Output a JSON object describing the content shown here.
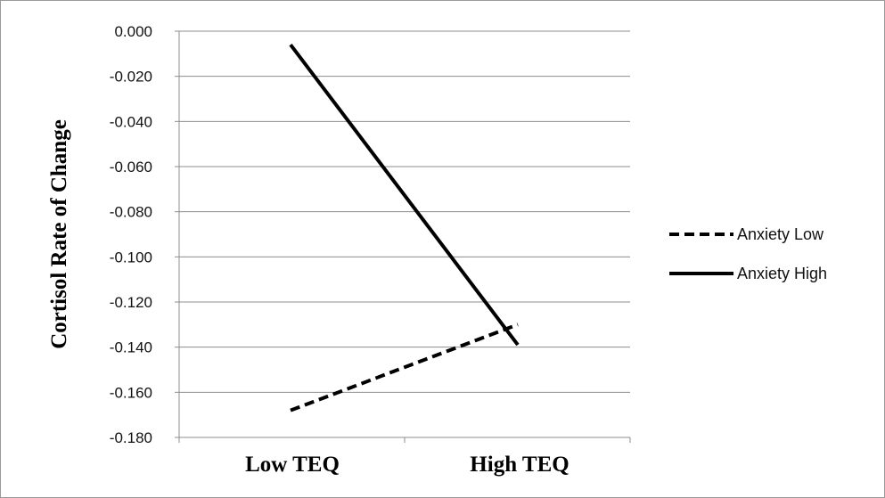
{
  "chart_data": {
    "type": "line",
    "ylabel": "Cortisol Rate of Change",
    "xlabel": "",
    "categories": [
      "Low TEQ",
      "High TEQ"
    ],
    "ylim": [
      -0.18,
      0.0
    ],
    "yticks": [
      "0.000",
      "-0.020",
      "-0.040",
      "-0.060",
      "-0.080",
      "-0.100",
      "-0.120",
      "-0.140",
      "-0.160",
      "-0.180"
    ],
    "ytick_values": [
      0.0,
      -0.02,
      -0.04,
      -0.06,
      -0.08,
      -0.1,
      -0.12,
      -0.14,
      -0.16,
      -0.18
    ],
    "grid": true,
    "legend": "right",
    "series": [
      {
        "name": "Anxiety Low",
        "values": [
          -0.168,
          -0.13
        ],
        "line_style": "dashed",
        "color": "#000000"
      },
      {
        "name": "Anxiety High",
        "values": [
          -0.006,
          -0.139
        ],
        "line_style": "solid",
        "color": "#000000"
      }
    ]
  }
}
